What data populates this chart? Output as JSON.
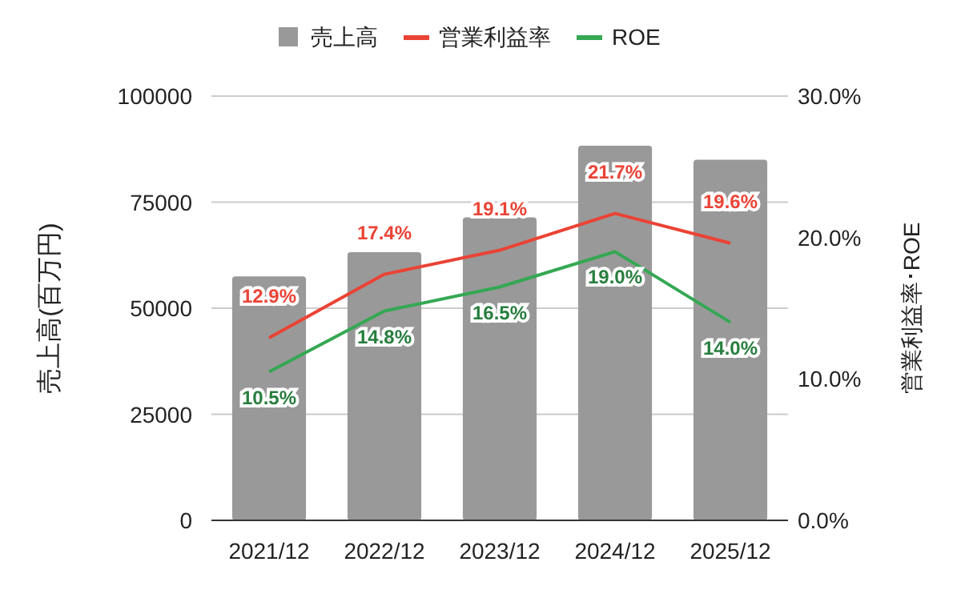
{
  "chart_data": {
    "type": "bar",
    "categories": [
      "2021/12",
      "2022/12",
      "2023/12",
      "2024/12",
      "2025/12"
    ],
    "ylabel": "売上高(百万円)",
    "y2label": "営業利益率･ROE",
    "ylim": [
      0,
      100000
    ],
    "yticks": [
      0,
      25000,
      50000,
      75000,
      100000
    ],
    "y2lim": [
      0,
      30
    ],
    "y2ticks": [
      {
        "value": 0,
        "label": "0.0%"
      },
      {
        "value": 10,
        "label": "10.0%"
      },
      {
        "value": 20,
        "label": "20.0%"
      },
      {
        "value": 30,
        "label": "30.0%"
      }
    ],
    "grid": "y",
    "legend": "top",
    "series": [
      {
        "name": "売上高",
        "color": "#999999",
        "values": [
          57500,
          63200,
          71400,
          88300,
          85000
        ]
      },
      {
        "name": "営業利益率",
        "type": "line",
        "axis": "y2",
        "color": "#ea4335",
        "values": [
          12.9,
          17.4,
          19.1,
          21.7,
          19.6
        ],
        "value_labels": [
          "12.9%",
          "17.4%",
          "19.1%",
          "21.7%",
          "19.6%"
        ]
      },
      {
        "name": "ROE",
        "type": "line",
        "axis": "y2",
        "color": "#34a853",
        "values": [
          10.5,
          14.8,
          16.5,
          19.0,
          14.0
        ],
        "value_labels": [
          "10.5%",
          "14.8%",
          "16.5%",
          "19.0%",
          "14.0%"
        ]
      }
    ]
  }
}
